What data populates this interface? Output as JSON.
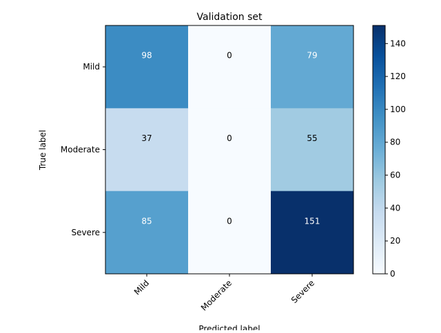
{
  "chart_data": {
    "type": "heatmap",
    "title": "Validation set",
    "xlabel": "Predicted label",
    "ylabel": "True label",
    "x_categories": [
      "Mild",
      "Moderate",
      "Severe"
    ],
    "y_categories": [
      "Mild",
      "Moderate",
      "Severe"
    ],
    "values": [
      [
        98,
        0,
        79
      ],
      [
        37,
        0,
        55
      ],
      [
        85,
        0,
        151
      ]
    ],
    "colormap": "Blues",
    "vmin": 0,
    "vmax": 151,
    "colorbar_ticks": [
      0,
      20,
      40,
      60,
      80,
      100,
      120,
      140
    ],
    "text_color_dark": "#000000",
    "text_color_light": "#ffffff"
  }
}
